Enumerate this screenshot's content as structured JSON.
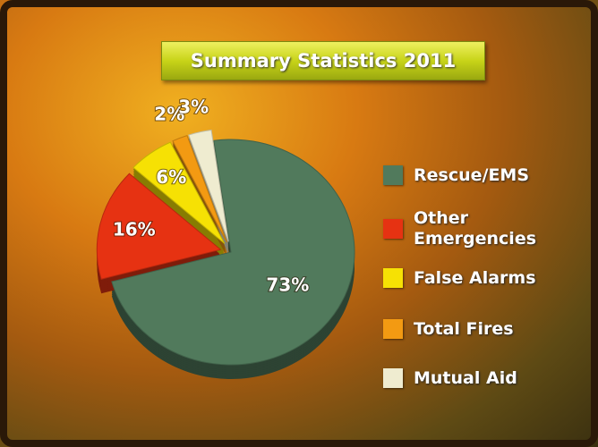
{
  "chart_data": {
    "type": "pie",
    "title": "Summary Statistics 2011",
    "categories": [
      "Rescue/EMS",
      "Other Emergencies",
      "False Alarms",
      "Total Fires",
      "Mutual Aid"
    ],
    "values": [
      73,
      16,
      6,
      2,
      3
    ],
    "value_labels": [
      "73%",
      "16%",
      "6%",
      "2%",
      "3%"
    ],
    "colors": [
      "#517a5c",
      "#e63212",
      "#f6e104",
      "#f39a12",
      "#efecd0"
    ],
    "legend": "right"
  }
}
